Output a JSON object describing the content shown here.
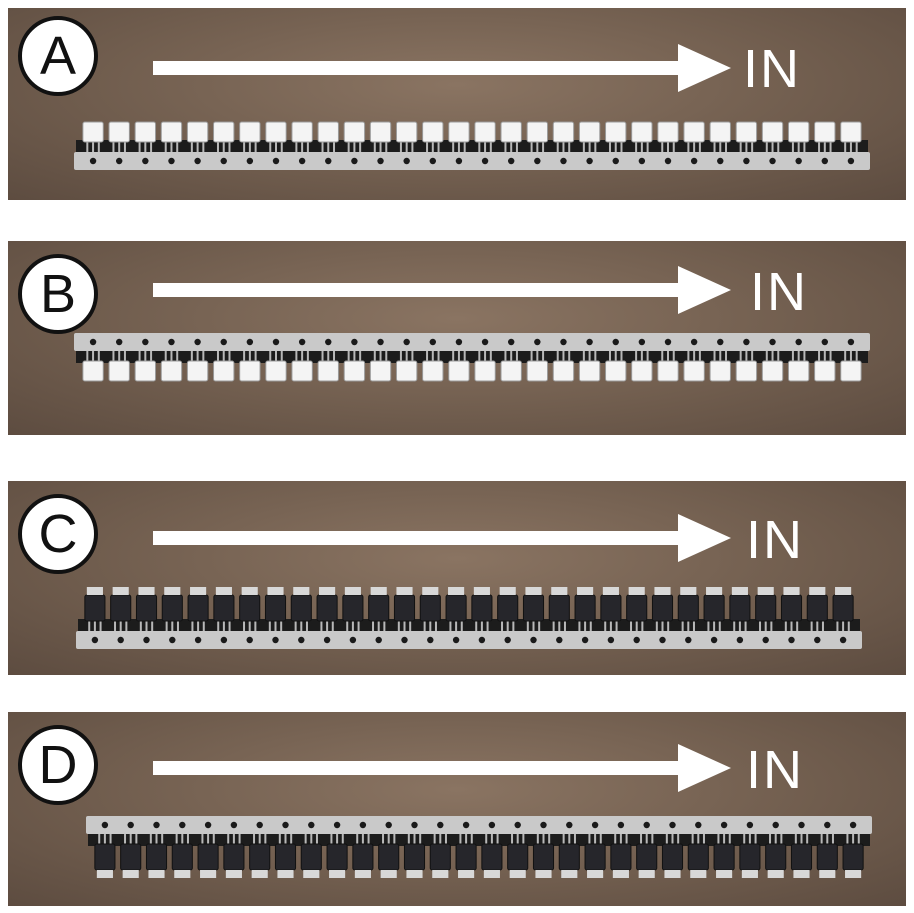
{
  "panels": [
    {
      "letter": "A",
      "direction_label": "IN",
      "orientation": "carrier-bottom",
      "body_color": "#ffffff",
      "parts_count": 30
    },
    {
      "letter": "B",
      "direction_label": "IN",
      "orientation": "carrier-top",
      "body_color": "#ffffff",
      "parts_count": 30
    },
    {
      "letter": "C",
      "direction_label": "IN",
      "orientation": "carrier-bottom",
      "body_color": "#2a2a2e",
      "parts_count": 30
    },
    {
      "letter": "D",
      "direction_label": "IN",
      "orientation": "carrier-top",
      "body_color": "#2a2a2e",
      "parts_count": 30
    }
  ],
  "colors": {
    "panel_background": "#6f5c4d",
    "carrier_metal": "#c9c9c9",
    "arrow": "#ffffff",
    "badge_fill": "#ffffff",
    "badge_border": "#111111"
  },
  "icons": [
    "arrow-right-icon"
  ]
}
